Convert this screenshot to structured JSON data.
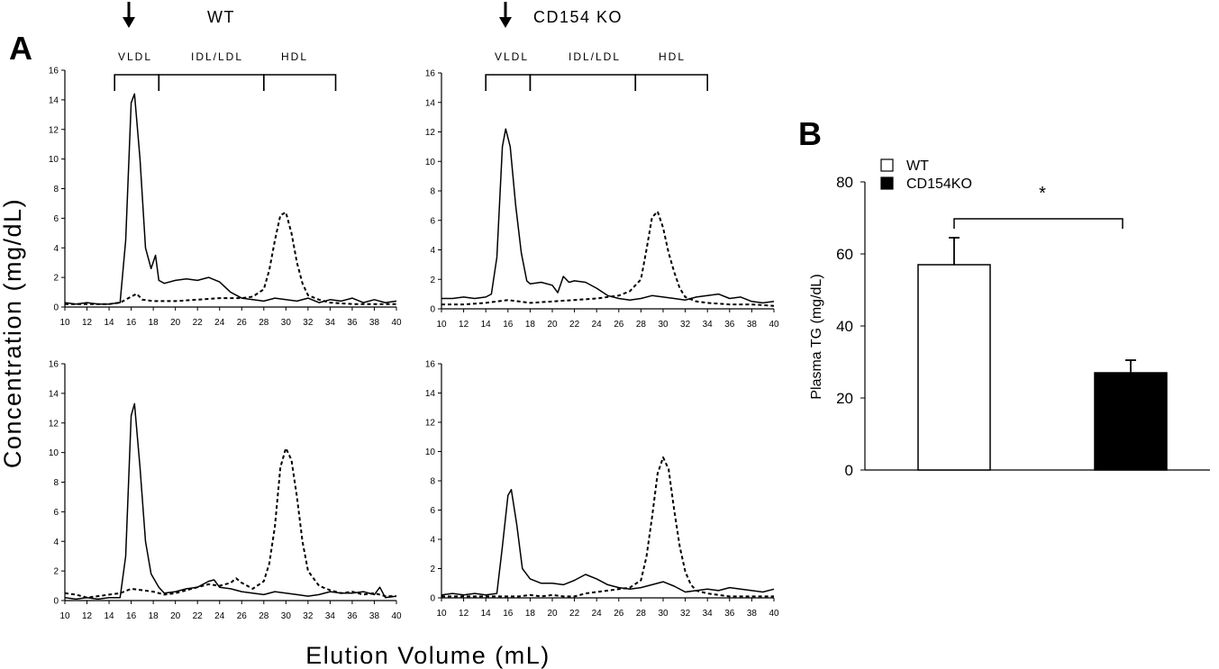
{
  "panel_a": {
    "letter": "A",
    "titles": {
      "wt": "WT",
      "ko": "CD154 KO"
    },
    "fractions": [
      "VLDL",
      "IDL/LDL",
      "HDL"
    ],
    "ylabel": "Concentration (mg/dL)",
    "xlabel": "Elution Volume (mL)"
  },
  "panel_b": {
    "letter": "B",
    "ylabel": "Plasma TG (mg/dL)",
    "significance": "*",
    "legend": [
      "WT",
      "CD154KO"
    ]
  },
  "colors": {
    "wt_bar": "#ffffff",
    "ko_bar": "#000000",
    "line": "#000000"
  },
  "chart_data": [
    {
      "id": "wt-top",
      "type": "line",
      "xlim": [
        10,
        40
      ],
      "ylim": [
        0,
        16
      ],
      "xticks": [
        10,
        12,
        14,
        16,
        18,
        20,
        22,
        24,
        26,
        28,
        30,
        32,
        34,
        36,
        38,
        40
      ],
      "yticks": [
        0,
        2,
        4,
        6,
        8,
        10,
        12,
        14,
        16
      ],
      "fraction_brackets": [
        [
          14.5,
          18.5
        ],
        [
          18.5,
          28
        ],
        [
          28,
          34.5
        ]
      ],
      "series": [
        {
          "style": "solid",
          "x": [
            10,
            11,
            12,
            13,
            14,
            15,
            15.5,
            16,
            16.3,
            16.8,
            17.3,
            17.8,
            18.2,
            18.5,
            19,
            20,
            21,
            22,
            23,
            24,
            25,
            26,
            27,
            28,
            29,
            30,
            31,
            32,
            33,
            34,
            35,
            36,
            37,
            38,
            39,
            40
          ],
          "y": [
            0.3,
            0.2,
            0.3,
            0.2,
            0.2,
            0.3,
            4.5,
            13.8,
            14.4,
            10,
            4,
            2.6,
            3.5,
            1.8,
            1.6,
            1.8,
            1.9,
            1.8,
            2.0,
            1.7,
            1.0,
            0.6,
            0.5,
            0.4,
            0.6,
            0.5,
            0.4,
            0.6,
            0.3,
            0.5,
            0.4,
            0.6,
            0.3,
            0.5,
            0.3,
            0.4
          ]
        },
        {
          "style": "dashed",
          "x": [
            10,
            12,
            14,
            15,
            16,
            16.5,
            17,
            18,
            20,
            22,
            24,
            26,
            27,
            28,
            28.5,
            29,
            29.5,
            30,
            30.5,
            31,
            31.5,
            32,
            33,
            34,
            36,
            38,
            40
          ],
          "y": [
            0.2,
            0.2,
            0.2,
            0.3,
            0.7,
            0.9,
            0.5,
            0.4,
            0.4,
            0.5,
            0.6,
            0.6,
            0.7,
            1.2,
            2.5,
            4.5,
            6.2,
            6.4,
            5.0,
            3.0,
            1.6,
            0.8,
            0.5,
            0.3,
            0.2,
            0.2,
            0.2
          ]
        }
      ]
    },
    {
      "id": "ko-top",
      "type": "line",
      "xlim": [
        10,
        40
      ],
      "ylim": [
        0,
        16
      ],
      "xticks": [
        10,
        12,
        14,
        16,
        18,
        20,
        22,
        24,
        26,
        28,
        30,
        32,
        34,
        36,
        38,
        40
      ],
      "yticks": [
        0,
        2,
        4,
        6,
        8,
        10,
        12,
        14,
        16
      ],
      "fraction_brackets": [
        [
          14,
          18
        ],
        [
          18,
          27.5
        ],
        [
          27.5,
          34
        ]
      ],
      "series": [
        {
          "style": "solid",
          "x": [
            10,
            11,
            12,
            13,
            14,
            14.5,
            15,
            15.5,
            15.8,
            16.2,
            16.7,
            17.2,
            17.7,
            18,
            19,
            20,
            20.5,
            21,
            21.5,
            22,
            23,
            24,
            25,
            26,
            27,
            28,
            29,
            30,
            31,
            32,
            33,
            34,
            35,
            36,
            37,
            38,
            39,
            40
          ],
          "y": [
            0.7,
            0.7,
            0.8,
            0.7,
            0.8,
            1.0,
            3.5,
            11,
            12.2,
            11,
            7,
            3.8,
            1.9,
            1.7,
            1.8,
            1.6,
            1.1,
            2.2,
            1.8,
            1.9,
            1.8,
            1.4,
            0.9,
            0.7,
            0.6,
            0.7,
            0.9,
            0.8,
            0.7,
            0.6,
            0.8,
            0.9,
            1.0,
            0.7,
            0.8,
            0.5,
            0.4,
            0.5
          ]
        },
        {
          "style": "dashed",
          "x": [
            10,
            12,
            14,
            15,
            16,
            17,
            18,
            20,
            22,
            24,
            26,
            27,
            28,
            28.5,
            29,
            29.5,
            30,
            30.5,
            31,
            31.5,
            32,
            33,
            34,
            36,
            38,
            40
          ],
          "y": [
            0.3,
            0.3,
            0.4,
            0.5,
            0.6,
            0.5,
            0.4,
            0.5,
            0.6,
            0.7,
            0.9,
            1.2,
            2.0,
            4.0,
            6.2,
            6.6,
            5.5,
            3.8,
            2.5,
            1.4,
            0.8,
            0.5,
            0.4,
            0.3,
            0.3,
            0.2
          ]
        }
      ]
    },
    {
      "id": "wt-bottom",
      "type": "line",
      "xlim": [
        10,
        40
      ],
      "ylim": [
        0,
        16
      ],
      "xticks": [
        10,
        12,
        14,
        16,
        18,
        20,
        22,
        24,
        26,
        28,
        30,
        32,
        34,
        36,
        38,
        40
      ],
      "yticks": [
        0,
        2,
        4,
        6,
        8,
        10,
        12,
        14,
        16
      ],
      "series": [
        {
          "style": "solid",
          "x": [
            10,
            11,
            12,
            13,
            14,
            15,
            15.5,
            16,
            16.3,
            16.8,
            17.3,
            17.8,
            18.5,
            19,
            20,
            21,
            22,
            23,
            23.5,
            24,
            25,
            26,
            27,
            28,
            29,
            30,
            31,
            32,
            33,
            34,
            35,
            36,
            37,
            38,
            38.5,
            39,
            40
          ],
          "y": [
            0.2,
            0.1,
            0.2,
            0.1,
            0.2,
            0.2,
            3,
            12.5,
            13.3,
            9,
            4,
            1.8,
            0.9,
            0.5,
            0.6,
            0.8,
            0.9,
            1.3,
            1.4,
            0.9,
            0.8,
            0.6,
            0.5,
            0.4,
            0.6,
            0.5,
            0.4,
            0.3,
            0.4,
            0.6,
            0.5,
            0.5,
            0.6,
            0.4,
            0.9,
            0.2,
            0.3
          ]
        },
        {
          "style": "dashed",
          "x": [
            10,
            11,
            12,
            13,
            14,
            15,
            16,
            17,
            18,
            19,
            20,
            21,
            22,
            23,
            24,
            25,
            25.5,
            26,
            27,
            28,
            28.5,
            29,
            29.5,
            30,
            30.5,
            31,
            31.5,
            32,
            33,
            34,
            35,
            36,
            37,
            38,
            39,
            40
          ],
          "y": [
            0.5,
            0.4,
            0.2,
            0.3,
            0.4,
            0.5,
            0.8,
            0.7,
            0.6,
            0.4,
            0.5,
            0.7,
            0.9,
            1.1,
            1.0,
            1.2,
            1.5,
            1.2,
            0.8,
            1.3,
            2.5,
            5.0,
            9.0,
            10.3,
            9.5,
            7.0,
            4.0,
            2.0,
            1.0,
            0.7,
            0.5,
            0.6,
            0.4,
            0.5,
            0.3,
            0.3
          ]
        }
      ]
    },
    {
      "id": "ko-bottom",
      "type": "line",
      "xlim": [
        10,
        40
      ],
      "ylim": [
        0,
        16
      ],
      "xticks": [
        10,
        12,
        14,
        16,
        18,
        20,
        22,
        24,
        26,
        28,
        30,
        32,
        34,
        36,
        38,
        40
      ],
      "yticks": [
        0,
        2,
        4,
        6,
        8,
        10,
        12,
        14,
        16
      ],
      "series": [
        {
          "style": "solid",
          "x": [
            10,
            11,
            12,
            13,
            14,
            15,
            15.5,
            16,
            16.3,
            16.8,
            17.3,
            18,
            19,
            20,
            21,
            22,
            23,
            24,
            25,
            26,
            27,
            28,
            29,
            30,
            31,
            32,
            33,
            34,
            35,
            36,
            37,
            38,
            39,
            40
          ],
          "y": [
            0.2,
            0.3,
            0.2,
            0.3,
            0.2,
            0.3,
            3.5,
            7.0,
            7.4,
            5,
            2,
            1.3,
            1.0,
            1.0,
            0.9,
            1.2,
            1.6,
            1.3,
            0.9,
            0.7,
            0.6,
            0.7,
            0.9,
            1.1,
            0.8,
            0.4,
            0.5,
            0.6,
            0.5,
            0.7,
            0.6,
            0.5,
            0.4,
            0.6
          ]
        },
        {
          "style": "dashed",
          "x": [
            10,
            12,
            14,
            16,
            17,
            18,
            19,
            20,
            21,
            22,
            23,
            24,
            25,
            26,
            27,
            28,
            28.5,
            29,
            29.5,
            30,
            30.5,
            31,
            31.5,
            32,
            32.5,
            33,
            34,
            36,
            38,
            40
          ],
          "y": [
            0.1,
            0.1,
            0.1,
            0.1,
            0.1,
            0.2,
            0.1,
            0.2,
            0.1,
            0.1,
            0.3,
            0.4,
            0.5,
            0.6,
            0.7,
            1.2,
            2.8,
            5.5,
            8.5,
            9.6,
            8.8,
            6.0,
            3.5,
            1.8,
            0.9,
            0.5,
            0.3,
            0.1,
            0.1,
            0.1
          ]
        }
      ]
    },
    {
      "id": "tg-bar",
      "type": "bar",
      "categories": [
        "WT",
        "CD154KO"
      ],
      "values": [
        57,
        27
      ],
      "errors": [
        7.5,
        3.5
      ],
      "ylim": [
        0,
        80
      ],
      "yticks": [
        0,
        20,
        40,
        60,
        80
      ],
      "ylabel": "Plasma TG (mg/dL)"
    }
  ]
}
